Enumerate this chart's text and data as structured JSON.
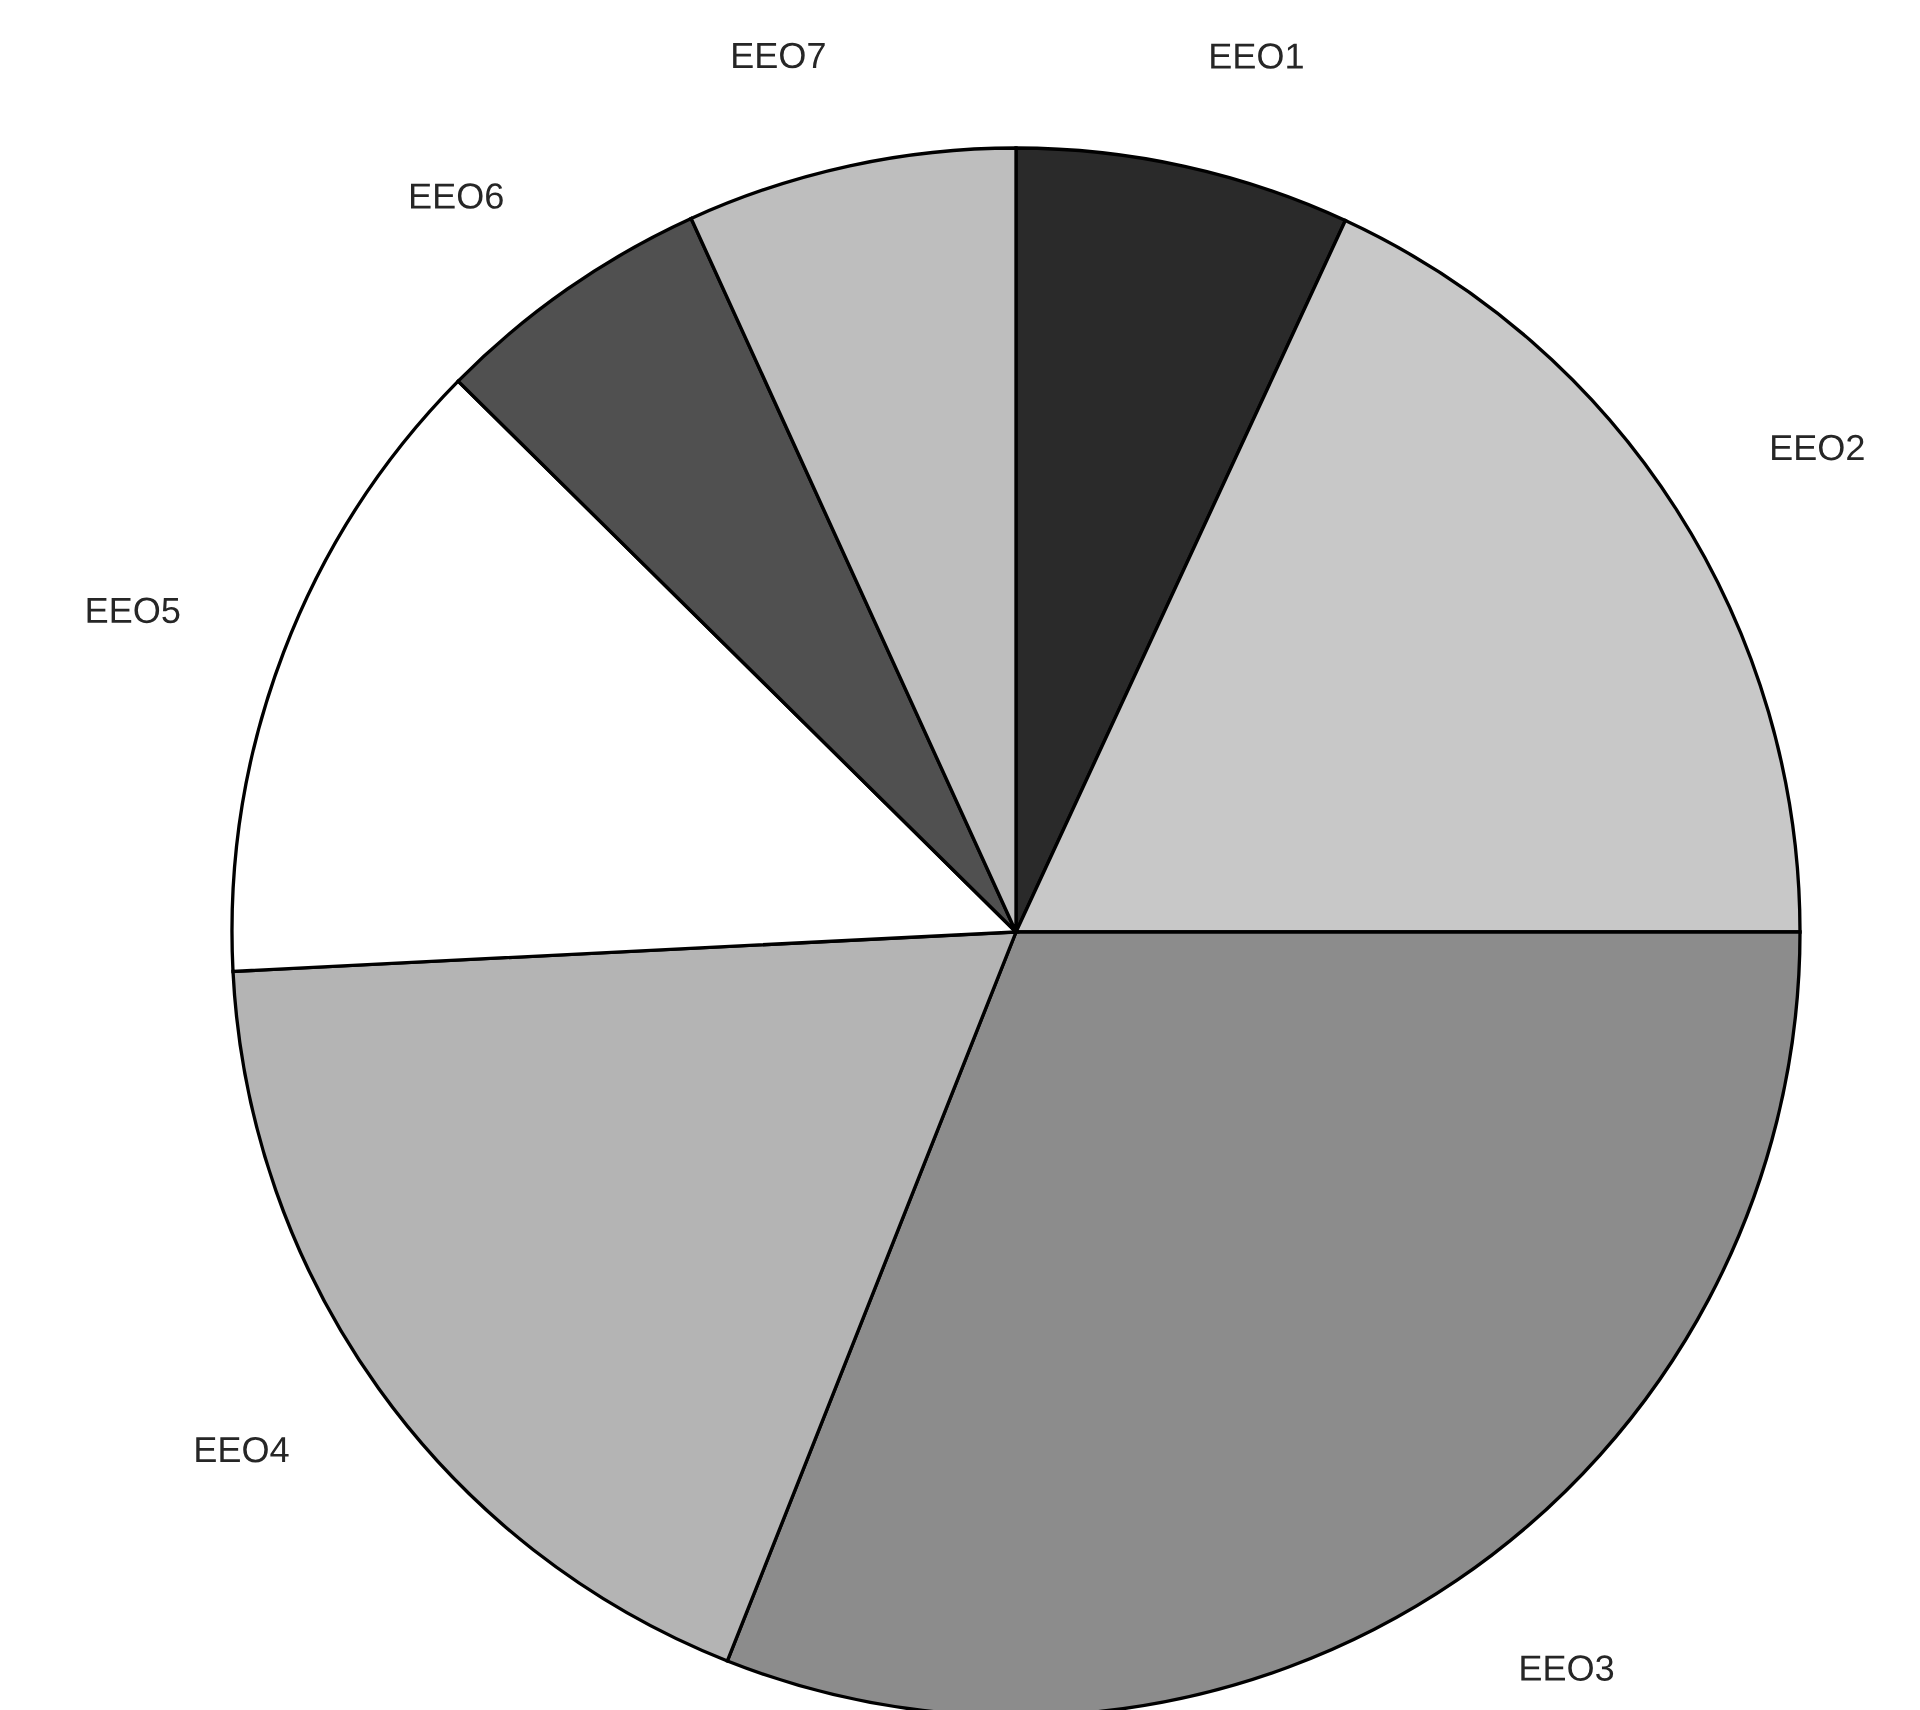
{
  "chart_data": {
    "type": "pie",
    "categories": [
      "EEO1",
      "EEO2",
      "EEO3",
      "EEO4",
      "EEO5",
      "EEO6",
      "EEO7"
    ],
    "values": [
      6.9,
      18.1,
      31.0,
      18.2,
      13.2,
      5.8,
      6.8
    ],
    "colors": [
      "#2a2a2a",
      "#c8c8c8",
      "#8c8c8c",
      "#b4b4b4",
      "#ffffff",
      "#505050",
      "#bebebe"
    ],
    "legend": false
  }
}
